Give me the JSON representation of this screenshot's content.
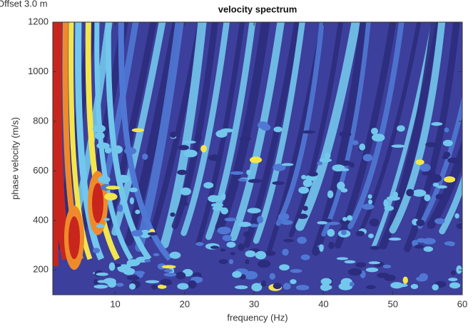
{
  "chart_data": {
    "type": "contour",
    "corner_text": "Offset 3.0 m",
    "title": "velocity spectrum",
    "x_label": "frequency (Hz)",
    "y_label": "phase velocity (m/s)",
    "xlim": [
      1,
      60
    ],
    "xticks": [
      10,
      20,
      30,
      40,
      50,
      60
    ],
    "ylim": [
      100,
      1200
    ],
    "yticks": [
      200,
      400,
      600,
      800,
      1000,
      1200
    ],
    "colors": [
      "#2b2c7c",
      "#3d3f9c",
      "#4f78d4",
      "#72c7ec",
      "#f2e64b",
      "#ef8a2b",
      "#c8261d"
    ]
  }
}
